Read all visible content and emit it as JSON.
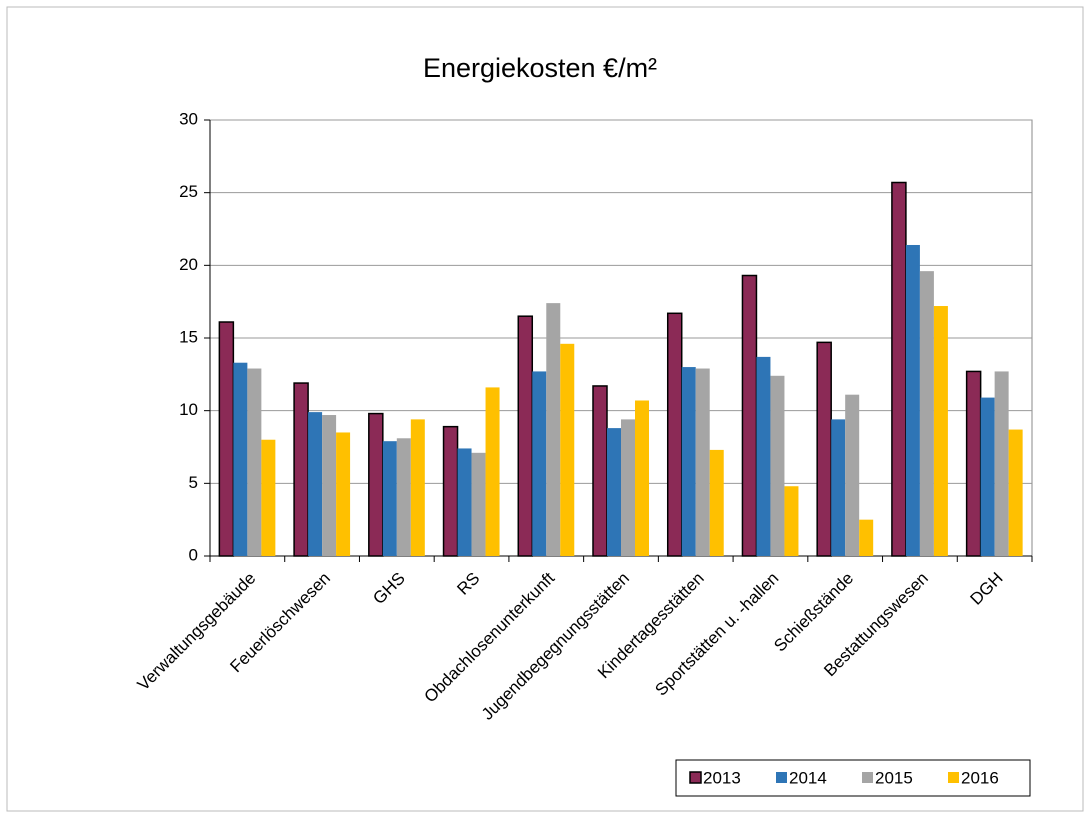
{
  "chart_data": {
    "type": "bar",
    "title": "Energiekosten €/m²",
    "categories": [
      "Verwaltungsgebäude",
      "Feuerlöschwesen",
      "GHS",
      "RS",
      "Obdachlosenunterkunft",
      "Jugendbegegnungsstätten",
      "Kindertagesstätten",
      "Sportstätten u. -hallen",
      "Schießstände",
      "Bestattungswesen",
      "DGH"
    ],
    "series": [
      {
        "name": "2013",
        "color": "#8b2a56",
        "values": [
          16.1,
          11.9,
          9.8,
          8.9,
          16.5,
          11.7,
          16.7,
          19.3,
          14.7,
          25.7,
          12.7
        ]
      },
      {
        "name": "2014",
        "color": "#2e75b6",
        "values": [
          13.3,
          9.9,
          7.9,
          7.4,
          12.7,
          8.8,
          13.0,
          13.7,
          9.4,
          21.4,
          10.9
        ]
      },
      {
        "name": "2015",
        "color": "#a5a5a5",
        "values": [
          12.9,
          9.7,
          8.1,
          7.1,
          17.4,
          9.4,
          12.9,
          12.4,
          11.1,
          19.6,
          12.7
        ]
      },
      {
        "name": "2016",
        "color": "#ffc000",
        "values": [
          8.0,
          8.5,
          9.4,
          11.6,
          14.6,
          10.7,
          7.3,
          4.8,
          2.5,
          17.2,
          8.7
        ]
      }
    ],
    "ylim": [
      0,
      30
    ],
    "yticks": [
      0,
      5,
      10,
      15,
      20,
      25,
      30
    ],
    "grid": true,
    "legend": "bottom-right"
  }
}
